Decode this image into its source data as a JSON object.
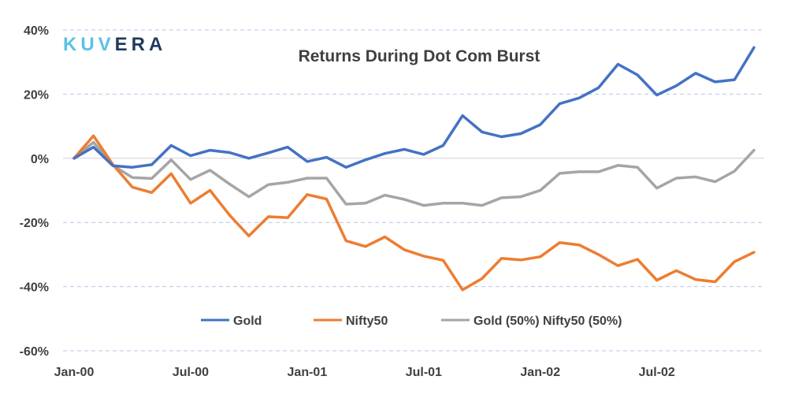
{
  "logo": {
    "text": "KUVERA",
    "color_light": "#5bc0e8",
    "color_dark": "#1f3b5c"
  },
  "chart_data": {
    "type": "line",
    "title": "Returns During Dot Com Burst",
    "xlabel": "",
    "ylabel": "",
    "ylim": [
      -0.6,
      0.4
    ],
    "y_ticks": [
      "40%",
      "20%",
      "0%",
      "-20%",
      "-40%",
      "-60%"
    ],
    "y_tick_values": [
      0.4,
      0.2,
      0.0,
      -0.2,
      -0.4,
      -0.6
    ],
    "x_ticks": [
      "Jan-00",
      "Jul-00",
      "Jan-01",
      "Jul-01",
      "Jan-02",
      "Jul-02"
    ],
    "x_tick_indices": [
      0,
      6,
      12,
      18,
      24,
      30
    ],
    "x": [
      "2000-01",
      "2000-02",
      "2000-03",
      "2000-04",
      "2000-05",
      "2000-06",
      "2000-07",
      "2000-08",
      "2000-09",
      "2000-10",
      "2000-11",
      "2000-12",
      "2001-01",
      "2001-02",
      "2001-03",
      "2001-04",
      "2001-05",
      "2001-06",
      "2001-07",
      "2001-08",
      "2001-09",
      "2001-10",
      "2001-11",
      "2001-12",
      "2002-01",
      "2002-02",
      "2002-03",
      "2002-04",
      "2002-05",
      "2002-06",
      "2002-07",
      "2002-08",
      "2002-09",
      "2002-10",
      "2002-11",
      "2002-12"
    ],
    "grid": true,
    "legend_position": "bottom",
    "series": [
      {
        "name": "Gold",
        "color": "#4472c4",
        "values": [
          0.0,
          0.035,
          -0.023,
          -0.028,
          -0.02,
          0.04,
          0.008,
          0.025,
          0.018,
          0.0,
          0.017,
          0.035,
          -0.01,
          0.003,
          -0.028,
          -0.005,
          0.015,
          0.028,
          0.012,
          0.04,
          0.133,
          0.082,
          0.067,
          0.077,
          0.105,
          0.17,
          0.188,
          0.22,
          0.293,
          0.26,
          0.197,
          0.226,
          0.265,
          0.238,
          0.245,
          0.345
        ]
      },
      {
        "name": "Nifty50",
        "color": "#ed7d31",
        "values": [
          0.0,
          0.07,
          -0.02,
          -0.09,
          -0.107,
          -0.048,
          -0.14,
          -0.1,
          -0.177,
          -0.242,
          -0.182,
          -0.185,
          -0.113,
          -0.127,
          -0.257,
          -0.275,
          -0.245,
          -0.285,
          -0.305,
          -0.318,
          -0.41,
          -0.375,
          -0.312,
          -0.317,
          -0.307,
          -0.263,
          -0.27,
          -0.3,
          -0.335,
          -0.315,
          -0.38,
          -0.35,
          -0.378,
          -0.385,
          -0.322,
          -0.293
        ]
      },
      {
        "name": "Gold (50%) Nifty50 (50%)",
        "color": "#a5a5a5",
        "values": [
          0.0,
          0.05,
          -0.022,
          -0.06,
          -0.063,
          -0.005,
          -0.066,
          -0.037,
          -0.08,
          -0.12,
          -0.082,
          -0.075,
          -0.062,
          -0.062,
          -0.143,
          -0.14,
          -0.115,
          -0.128,
          -0.147,
          -0.14,
          -0.14,
          -0.147,
          -0.123,
          -0.12,
          -0.1,
          -0.047,
          -0.042,
          -0.042,
          -0.022,
          -0.028,
          -0.093,
          -0.062,
          -0.058,
          -0.073,
          -0.04,
          0.025
        ]
      }
    ]
  }
}
